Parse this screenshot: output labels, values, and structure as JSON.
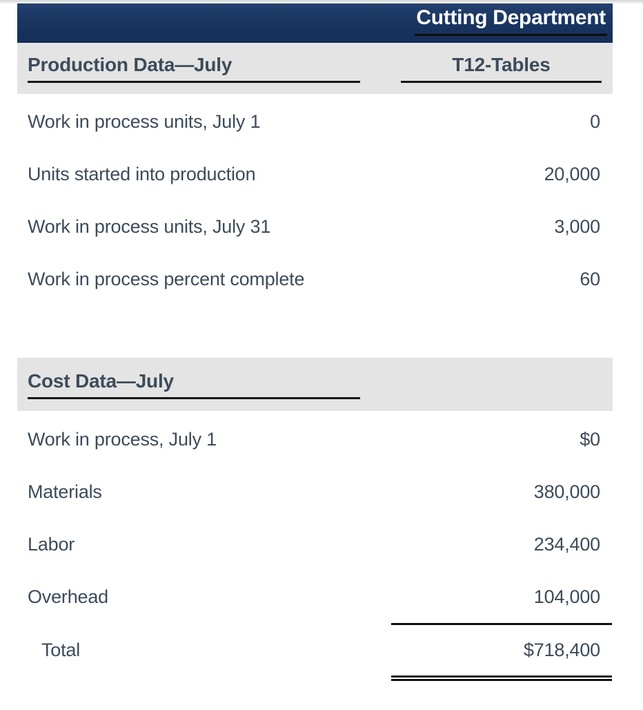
{
  "header": {
    "department": "Cutting Department"
  },
  "production": {
    "title": "Production Data—July",
    "column_header": "T12-Tables",
    "rows": [
      {
        "label": "Work in process units, July 1",
        "value": "0"
      },
      {
        "label": "Units started into production",
        "value": "20,000"
      },
      {
        "label": "Work in process units, July 31",
        "value": "3,000"
      },
      {
        "label": "Work in process percent complete",
        "value": "60"
      }
    ]
  },
  "cost": {
    "title": "Cost Data—July",
    "rows": [
      {
        "label": "Work in process, July 1",
        "value": "$0"
      },
      {
        "label": "Materials",
        "value": "380,000"
      },
      {
        "label": "Labor",
        "value": "234,400"
      },
      {
        "label": "Overhead",
        "value": "104,000"
      }
    ],
    "total": {
      "label": "Total",
      "value": "$718,400"
    }
  },
  "colors": {
    "header_bg": "#1b3763",
    "header_text": "#ffffff",
    "band_bg": "#e4e4e4",
    "text": "#3d4b5a",
    "rule": "#111111"
  }
}
